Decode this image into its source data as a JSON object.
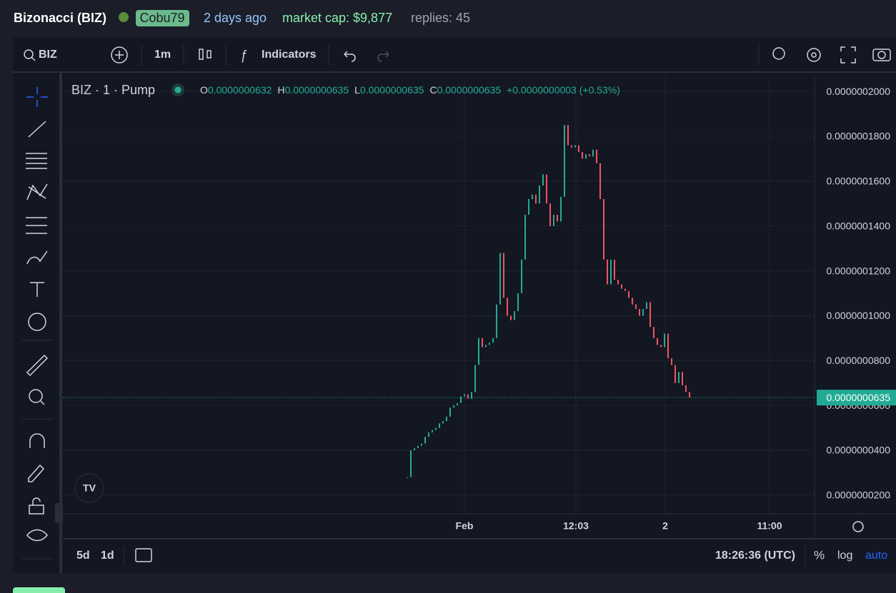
{
  "header": {
    "token": "Bizonacci (BIZ)",
    "creator": "Cobu79",
    "age": "2 days ago",
    "market_cap": "market cap: $9,877",
    "replies": "replies: 45"
  },
  "toolbar": {
    "symbol": "BIZ",
    "interval": "1m",
    "indicators": "Indicators"
  },
  "legend": {
    "title": "BIZ · 1 · Pump",
    "ohlc": [
      {
        "key": "O",
        "value": "0.0000000632"
      },
      {
        "key": "H",
        "value": "0.0000000635"
      },
      {
        "key": "L",
        "value": "0.0000000635"
      },
      {
        "key": "C",
        "value": "0.0000000635"
      }
    ],
    "change": "+0.0000000003 (+0.53%)"
  },
  "bottom_bar": {
    "ranges": [
      "5d",
      "1d"
    ],
    "clock": "18:26:36 (UTC)",
    "percent": "%",
    "log": "log",
    "auto": "auto"
  },
  "chart_data": {
    "type": "candlestick",
    "values": [
      2.8e-08,
      4e-08,
      4.1e-08,
      4.2e-08,
      4.3e-08,
      4.6e-08,
      4.8e-08,
      4.9e-08,
      5e-08,
      5.2e-08,
      5.3e-08,
      5.5e-08,
      5.9e-08,
      6e-08,
      6.1e-08,
      6.4e-08,
      6.5e-08,
      6.3e-08,
      6.6e-08,
      7.8e-08,
      9e-08,
      8.6e-08,
      8.7e-08,
      8.8e-08,
      9e-08,
      1.05e-07,
      1.28e-07,
      1.08e-07,
      1e-07,
      9.8e-08,
      1.02e-07,
      1.1e-07,
      1.25e-07,
      1.45e-07,
      1.52e-07,
      1.54e-07,
      1.5e-07,
      1.58e-07,
      1.63e-07,
      1.5e-07,
      1.4e-07,
      1.45e-07,
      1.42e-07,
      1.53e-07,
      1.85e-07,
      1.76e-07,
      1.75e-07,
      1.76e-07,
      1.73e-07,
      1.7e-07,
      1.72e-07,
      1.71e-07,
      1.74e-07,
      1.68e-07,
      1.52e-07,
      1.25e-07,
      1.14e-07,
      1.25e-07,
      1.16e-07,
      1.14e-07,
      1.12e-07,
      1.11e-07,
      1.08e-07,
      1.05e-07,
      1.03e-07,
      1e-07,
      1.03e-07,
      1.06e-07,
      9.5e-08,
      9e-08,
      8.7e-08,
      8.6e-08,
      9.2e-08,
      8.1e-08,
      7.8e-08,
      7e-08,
      7.5e-08,
      6.9e-08,
      6.6e-08,
      6.35e-08
    ],
    "up_color": "#22ab94",
    "down_color": "#f7525f",
    "ylim": [
      1.17e-08,
      2.067e-07
    ],
    "yticks": [
      {
        "value": 2e-07,
        "label": "0.0000002000"
      },
      {
        "value": 1.8e-07,
        "label": "0.0000001800"
      },
      {
        "value": 1.6e-07,
        "label": "0.0000001600"
      },
      {
        "value": 1.4e-07,
        "label": "0.0000001400"
      },
      {
        "value": 1.2e-07,
        "label": "0.0000001200"
      },
      {
        "value": 1e-07,
        "label": "0.0000001000"
      },
      {
        "value": 8e-08,
        "label": "0.0000000800"
      },
      {
        "value": 6e-08,
        "label": "0.0000000600"
      },
      {
        "value": 4e-08,
        "label": "0.0000000400"
      },
      {
        "value": 2e-08,
        "label": "0.0000000200"
      }
    ],
    "xlim": [
      -96.4,
      114
    ],
    "xticks": [
      {
        "value": 16,
        "label": "Feb"
      },
      {
        "value": 47.2,
        "label": "12:03"
      },
      {
        "value": 72.2,
        "label": "2"
      },
      {
        "value": 101.4,
        "label": "11:00"
      }
    ],
    "last_price": {
      "value": 6.35e-08,
      "label": "0.0000000635"
    },
    "grid": true
  }
}
